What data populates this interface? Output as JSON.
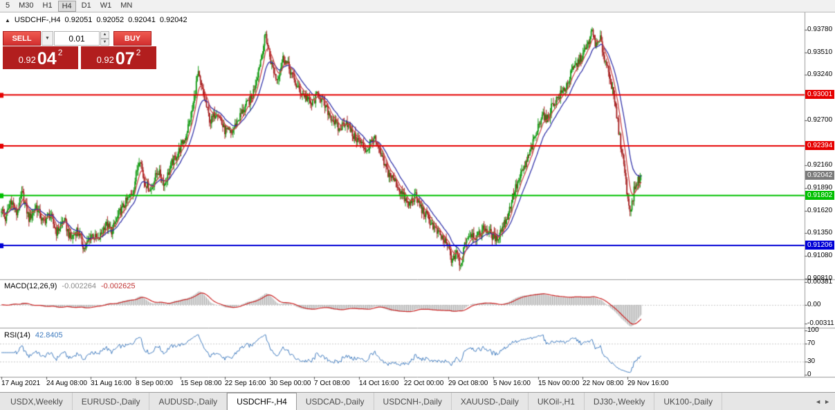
{
  "toolbar": {
    "timeframes": [
      "5",
      "M30",
      "H1",
      "H4",
      "D1",
      "W1",
      "MN"
    ],
    "active": "H4"
  },
  "info_line": {
    "symbol": "USDCHF-,H4",
    "open": "0.92051",
    "high": "0.92052",
    "low": "0.92041",
    "close": "0.92042"
  },
  "trade_panel": {
    "sell_label": "SELL",
    "buy_label": "BUY",
    "volume": "0.01",
    "sell_price": {
      "prefix": "0.92",
      "big": "04",
      "sup": "2"
    },
    "buy_price": {
      "prefix": "0.92",
      "big": "07",
      "sup": "2"
    }
  },
  "price_axis": {
    "labels": [
      {
        "text": "0.93780",
        "price": 0.9378
      },
      {
        "text": "0.93510",
        "price": 0.9351
      },
      {
        "text": "0.93240",
        "price": 0.9324
      },
      {
        "text": "0.92700",
        "price": 0.927
      },
      {
        "text": "0.92160",
        "price": 0.9216
      },
      {
        "text": "0.91890",
        "price": 0.9189
      },
      {
        "text": "0.91620",
        "price": 0.9162
      },
      {
        "text": "0.91350",
        "price": 0.9135
      },
      {
        "text": "0.91080",
        "price": 0.9108
      },
      {
        "text": "0.90810",
        "price": 0.9081
      }
    ]
  },
  "hlines": [
    {
      "price": 0.93001,
      "label": "0.93001",
      "color": "#e60000"
    },
    {
      "price": 0.92394,
      "label": "0.92394",
      "color": "#e60000"
    },
    {
      "price": 0.91802,
      "label": "0.91802",
      "color": "#00c000"
    },
    {
      "price": 0.91206,
      "label": "0.91206",
      "color": "#0000d6"
    }
  ],
  "current_price": {
    "value": 0.92042,
    "label": "0.92042",
    "color": "#7a7a7a"
  },
  "macd_panel": {
    "title": "MACD(12,26,9)",
    "value": "-0.002264",
    "signal": "-0.002625",
    "axis_labels": [
      {
        "text": "0.00381",
        "value": 0.00381
      },
      {
        "text": "0.00",
        "value": 0
      },
      {
        "text": "-0.00311",
        "value": -0.00311
      }
    ]
  },
  "rsi_panel": {
    "title": "RSI(14)",
    "value": "42.8405",
    "axis_labels": [
      {
        "text": "100",
        "value": 100
      },
      {
        "text": "70",
        "value": 70
      },
      {
        "text": "30",
        "value": 30
      },
      {
        "text": "0",
        "value": 0
      }
    ],
    "levels": [
      70,
      30
    ]
  },
  "time_axis": [
    "17 Aug 2021",
    "24 Aug 08:00",
    "31 Aug 16:00",
    "8 Sep 00:00",
    "15 Sep 08:00",
    "22 Sep 16:00",
    "30 Sep 00:00",
    "7 Oct 08:00",
    "14 Oct 16:00",
    "22 Oct 00:00",
    "29 Oct 08:00",
    "5 Nov 16:00",
    "15 Nov 00:00",
    "22 Nov 08:00",
    "29 Nov 16:00"
  ],
  "tabs": {
    "items": [
      "USDX,Weekly",
      "EURUSD-,Daily",
      "AUDUSD-,Daily",
      "USDCHF-,H4",
      "USDCAD-,Daily",
      "USDCNH-,Daily",
      "XAUUSD-,Daily",
      "UKOil-,H1",
      "DJ30-,Weekly",
      "UK100-,Daily"
    ],
    "active_index": 3
  },
  "chart_data": {
    "type": "candlestick",
    "symbol": "USDCHF",
    "period": "H4",
    "ylim": [
      0.9082,
      0.939
    ],
    "x0": 2,
    "bar_spacing": 1.475,
    "bar_count": 628,
    "colors": {
      "up": "#129a12",
      "down": "#a62121",
      "ma_fast": "#cf4646",
      "ma_slow": "#3333aa",
      "macd_hist": "#b4b4b4",
      "macd_signal": "#cc2222",
      "rsi": "#3f7bbf"
    },
    "ma_periods": {
      "fast": 8,
      "slow": 18
    },
    "close_path": [
      [
        0,
        0.9168
      ],
      [
        8,
        0.9152
      ],
      [
        16,
        0.9176
      ],
      [
        24,
        0.9158
      ],
      [
        32,
        0.9183
      ],
      [
        42,
        0.9152
      ],
      [
        52,
        0.9168
      ],
      [
        62,
        0.9148
      ],
      [
        72,
        0.9158
      ],
      [
        82,
        0.9136
      ],
      [
        92,
        0.9152
      ],
      [
        102,
        0.9128
      ],
      [
        112,
        0.914
      ],
      [
        122,
        0.9116
      ],
      [
        132,
        0.9134
      ],
      [
        142,
        0.9126
      ],
      [
        152,
        0.9146
      ],
      [
        162,
        0.9138
      ],
      [
        172,
        0.9158
      ],
      [
        182,
        0.9172
      ],
      [
        192,
        0.9184
      ],
      [
        202,
        0.9228
      ],
      [
        208,
        0.9198
      ],
      [
        218,
        0.9186
      ],
      [
        228,
        0.921
      ],
      [
        238,
        0.9194
      ],
      [
        248,
        0.9218
      ],
      [
        258,
        0.9232
      ],
      [
        268,
        0.925
      ],
      [
        278,
        0.9282
      ],
      [
        286,
        0.9326
      ],
      [
        294,
        0.93
      ],
      [
        304,
        0.9268
      ],
      [
        314,
        0.9282
      ],
      [
        324,
        0.9258
      ],
      [
        334,
        0.9254
      ],
      [
        344,
        0.927
      ],
      [
        354,
        0.9286
      ],
      [
        364,
        0.9296
      ],
      [
        374,
        0.9332
      ],
      [
        384,
        0.9372
      ],
      [
        392,
        0.9338
      ],
      [
        400,
        0.9318
      ],
      [
        410,
        0.9346
      ],
      [
        420,
        0.9328
      ],
      [
        430,
        0.9308
      ],
      [
        440,
        0.93
      ],
      [
        450,
        0.9288
      ],
      [
        460,
        0.9302
      ],
      [
        470,
        0.9286
      ],
      [
        480,
        0.9272
      ],
      [
        490,
        0.9258
      ],
      [
        500,
        0.927
      ],
      [
        510,
        0.9252
      ],
      [
        520,
        0.9244
      ],
      [
        530,
        0.9234
      ],
      [
        540,
        0.925
      ],
      [
        550,
        0.9228
      ],
      [
        560,
        0.9208
      ],
      [
        570,
        0.9198
      ],
      [
        580,
        0.9184
      ],
      [
        590,
        0.9168
      ],
      [
        600,
        0.918
      ],
      [
        610,
        0.9163
      ],
      [
        620,
        0.9152
      ],
      [
        630,
        0.9138
      ],
      [
        640,
        0.9128
      ],
      [
        648,
        0.9118
      ],
      [
        654,
        0.91
      ],
      [
        660,
        0.9116
      ],
      [
        665,
        0.9092
      ],
      [
        672,
        0.9126
      ],
      [
        680,
        0.9136
      ],
      [
        690,
        0.913
      ],
      [
        700,
        0.9142
      ],
      [
        710,
        0.9134
      ],
      [
        718,
        0.9128
      ],
      [
        726,
        0.9142
      ],
      [
        734,
        0.9156
      ],
      [
        742,
        0.9182
      ],
      [
        752,
        0.9202
      ],
      [
        762,
        0.9222
      ],
      [
        772,
        0.9246
      ],
      [
        778,
        0.9262
      ],
      [
        784,
        0.928
      ],
      [
        790,
        0.9268
      ],
      [
        798,
        0.9288
      ],
      [
        808,
        0.9298
      ],
      [
        818,
        0.931
      ],
      [
        828,
        0.933
      ],
      [
        838,
        0.9342
      ],
      [
        848,
        0.9356
      ],
      [
        856,
        0.9376
      ],
      [
        862,
        0.9358
      ],
      [
        868,
        0.9366
      ],
      [
        874,
        0.9342
      ],
      [
        880,
        0.933
      ],
      [
        886,
        0.9302
      ],
      [
        892,
        0.9272
      ],
      [
        897,
        0.9242
      ],
      [
        902,
        0.9218
      ],
      [
        907,
        0.9178
      ],
      [
        912,
        0.9162
      ],
      [
        917,
        0.9188
      ],
      [
        922,
        0.9198
      ],
      [
        928,
        0.9204
      ]
    ]
  }
}
